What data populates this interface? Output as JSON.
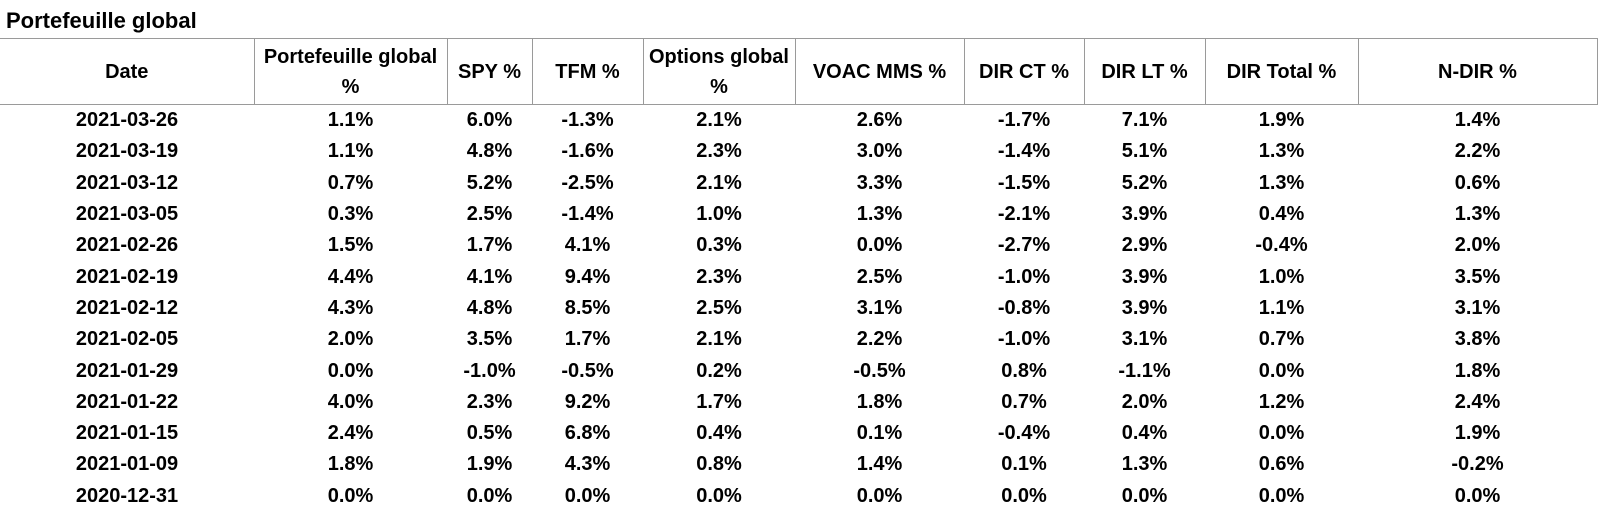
{
  "title": "Portefeuille global",
  "columns": [
    "Date",
    "Portefeuille global %",
    "SPY %",
    "TFM %",
    "Options global %",
    "VOAC MMS %",
    "DIR CT %",
    "DIR LT %",
    "DIR Total %",
    "N-DIR %"
  ],
  "rows": [
    [
      "2021-03-26",
      "1.1%",
      "6.0%",
      "-1.3%",
      "2.1%",
      "2.6%",
      "-1.7%",
      "7.1%",
      "1.9%",
      "1.4%"
    ],
    [
      "2021-03-19",
      "1.1%",
      "4.8%",
      "-1.6%",
      "2.3%",
      "3.0%",
      "-1.4%",
      "5.1%",
      "1.3%",
      "2.2%"
    ],
    [
      "2021-03-12",
      "0.7%",
      "5.2%",
      "-2.5%",
      "2.1%",
      "3.3%",
      "-1.5%",
      "5.2%",
      "1.3%",
      "0.6%"
    ],
    [
      "2021-03-05",
      "0.3%",
      "2.5%",
      "-1.4%",
      "1.0%",
      "1.3%",
      "-2.1%",
      "3.9%",
      "0.4%",
      "1.3%"
    ],
    [
      "2021-02-26",
      "1.5%",
      "1.7%",
      "4.1%",
      "0.3%",
      "0.0%",
      "-2.7%",
      "2.9%",
      "-0.4%",
      "2.0%"
    ],
    [
      "2021-02-19",
      "4.4%",
      "4.1%",
      "9.4%",
      "2.3%",
      "2.5%",
      "-1.0%",
      "3.9%",
      "1.0%",
      "3.5%"
    ],
    [
      "2021-02-12",
      "4.3%",
      "4.8%",
      "8.5%",
      "2.5%",
      "3.1%",
      "-0.8%",
      "3.9%",
      "1.1%",
      "3.1%"
    ],
    [
      "2021-02-05",
      "2.0%",
      "3.5%",
      "1.7%",
      "2.1%",
      "2.2%",
      "-1.0%",
      "3.1%",
      "0.7%",
      "3.8%"
    ],
    [
      "2021-01-29",
      "0.0%",
      "-1.0%",
      "-0.5%",
      "0.2%",
      "-0.5%",
      "0.8%",
      "-1.1%",
      "0.0%",
      "1.8%"
    ],
    [
      "2021-01-22",
      "4.0%",
      "2.3%",
      "9.2%",
      "1.7%",
      "1.8%",
      "0.7%",
      "2.0%",
      "1.2%",
      "2.4%"
    ],
    [
      "2021-01-15",
      "2.4%",
      "0.5%",
      "6.8%",
      "0.4%",
      "0.1%",
      "-0.4%",
      "0.4%",
      "0.0%",
      "1.9%"
    ],
    [
      "2021-01-09",
      "1.8%",
      "1.9%",
      "4.3%",
      "0.8%",
      "1.4%",
      "0.1%",
      "1.3%",
      "0.6%",
      "-0.2%"
    ],
    [
      "2020-12-31",
      "0.0%",
      "0.0%",
      "0.0%",
      "0.0%",
      "0.0%",
      "0.0%",
      "0.0%",
      "0.0%",
      "0.0%"
    ]
  ]
}
